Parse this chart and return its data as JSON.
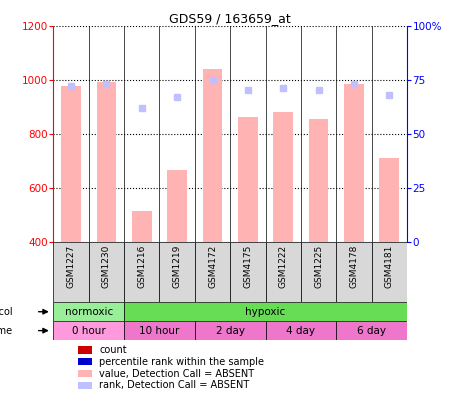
{
  "title": "GDS59 / 163659_at",
  "samples": [
    "GSM1227",
    "GSM1230",
    "GSM1216",
    "GSM1219",
    "GSM4172",
    "GSM4175",
    "GSM1222",
    "GSM1225",
    "GSM4178",
    "GSM4181"
  ],
  "bar_values": [
    975,
    990,
    515,
    665,
    1040,
    860,
    880,
    855,
    985,
    710
  ],
  "rank_values": [
    72,
    73,
    62,
    67,
    75,
    70,
    71,
    70,
    73,
    68
  ],
  "bar_color_absent": "#ffb3b3",
  "rank_color_absent": "#c0c0ff",
  "ylim_left": [
    400,
    1200
  ],
  "ylim_right": [
    0,
    100
  ],
  "yticks_left": [
    400,
    600,
    800,
    1000,
    1200
  ],
  "yticks_right": [
    0,
    25,
    50,
    75,
    100
  ],
  "protocol_groups": [
    {
      "label": "normoxic",
      "start": 0,
      "end": 2,
      "color": "#99ee99"
    },
    {
      "label": "hypoxic",
      "start": 2,
      "end": 10,
      "color": "#66dd55"
    }
  ],
  "time_groups": [
    {
      "label": "0 hour",
      "start": 0,
      "end": 2,
      "color": "#ff99dd"
    },
    {
      "label": "10 hour",
      "start": 2,
      "end": 4,
      "color": "#ee77cc"
    },
    {
      "label": "2 day",
      "start": 4,
      "end": 6,
      "color": "#ee77cc"
    },
    {
      "label": "4 day",
      "start": 6,
      "end": 8,
      "color": "#ee77cc"
    },
    {
      "label": "6 day",
      "start": 8,
      "end": 10,
      "color": "#ee77cc"
    }
  ],
  "legend_items": [
    {
      "label": "count",
      "color": "#cc0000"
    },
    {
      "label": "percentile rank within the sample",
      "color": "#0000cc"
    },
    {
      "label": "value, Detection Call = ABSENT",
      "color": "#ffb3b3"
    },
    {
      "label": "rank, Detection Call = ABSENT",
      "color": "#c0c0ff"
    }
  ],
  "xticklabel_bg": "#d8d8d8",
  "plot_border_color": "#000000",
  "grid_color": "#000000",
  "grid_linestyle": "dotted",
  "grid_linewidth": 0.8
}
